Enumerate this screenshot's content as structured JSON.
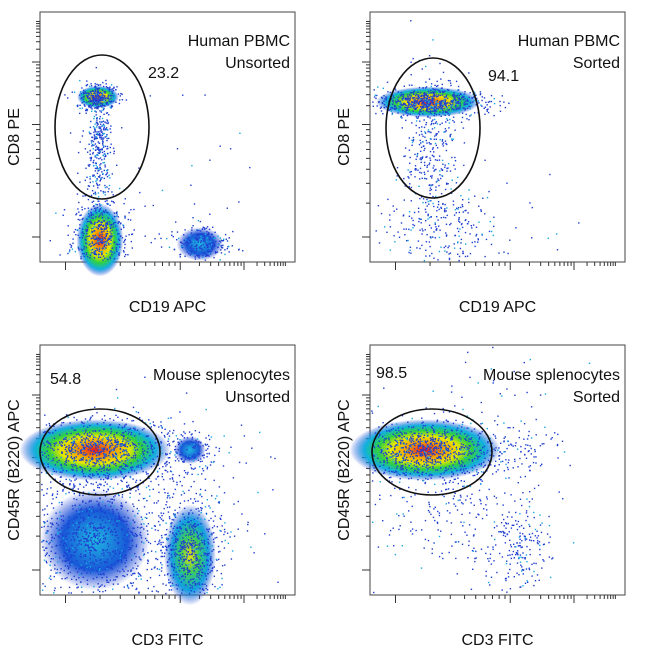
{
  "panels": [
    {
      "title_lines": [
        "Human PBMC",
        "Unsorted"
      ],
      "gate_value": 23.2,
      "x_label": "CD19 APC",
      "y_label": "CD8 PE"
    },
    {
      "title_lines": [
        "Human PBMC",
        "Sorted"
      ],
      "gate_value": 94.1,
      "x_label": "CD19 APC",
      "y_label": "CD8 PE"
    },
    {
      "title_lines": [
        "Mouse splenocytes",
        "Unsorted"
      ],
      "gate_value": 54.8,
      "x_label": "CD3 FITC",
      "y_label": "CD45R (B220) APC"
    },
    {
      "title_lines": [
        "Mouse splenocytes",
        "Sorted"
      ],
      "gate_value": 98.5,
      "x_label": "CD3 FITC",
      "y_label": "CD45R (B220) APC"
    }
  ]
}
